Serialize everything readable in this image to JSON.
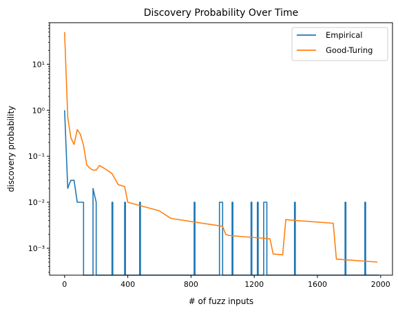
{
  "chart_data": {
    "type": "line",
    "title": "Discovery Probability Over Time",
    "xlabel": "# of fuzz inputs",
    "ylabel": "discovery probability",
    "xlim": [
      -95,
      2075
    ],
    "ylim": [
      0.00026,
      80
    ],
    "yscale": "log",
    "grid": false,
    "legend_position": "top-right",
    "xticks": [
      0,
      400,
      800,
      1200,
      1600,
      2000
    ],
    "xtick_labels": [
      "0",
      "400",
      "800",
      "1200",
      "1600",
      "2000"
    ],
    "yticks": [
      0.001,
      0.01,
      0.1,
      1,
      10
    ],
    "ytick_labels": [
      "10⁻³",
      "10⁻²",
      "10⁻¹",
      "10⁰",
      "10¹"
    ],
    "series": [
      {
        "name": "Empirical",
        "color": "#1f77b4",
        "x": [
          0,
          20,
          30,
          40,
          60,
          80,
          100,
          120,
          120,
          180,
          180,
          200,
          200,
          300,
          300,
          305,
          305,
          380,
          380,
          385,
          385,
          475,
          475,
          480,
          480,
          820,
          820,
          825,
          825,
          980,
          980,
          1000,
          1000,
          1060,
          1060,
          1065,
          1065,
          1180,
          1180,
          1185,
          1185,
          1220,
          1220,
          1225,
          1225,
          1260,
          1260,
          1280,
          1280,
          1455,
          1455,
          1460,
          1460,
          1775,
          1775,
          1780,
          1780,
          1900,
          1900,
          1905,
          1905,
          1990
        ],
        "y": [
          1.0,
          0.02,
          0.025,
          0.03,
          0.03,
          0.01,
          0.01,
          0.01,
          0.00026,
          0.00026,
          0.02,
          0.01,
          0.00026,
          0.00026,
          0.01,
          0.01,
          0.00026,
          0.00026,
          0.01,
          0.01,
          0.00026,
          0.00026,
          0.01,
          0.01,
          0.00026,
          0.00026,
          0.01,
          0.01,
          0.00026,
          0.00026,
          0.01,
          0.01,
          0.00026,
          0.00026,
          0.01,
          0.01,
          0.00026,
          0.00026,
          0.01,
          0.01,
          0.00026,
          0.00026,
          0.01,
          0.01,
          0.00026,
          0.00026,
          0.01,
          0.01,
          0.00026,
          0.00026,
          0.01,
          0.01,
          0.00026,
          0.00026,
          0.01,
          0.01,
          0.00026,
          0.00026,
          0.01,
          0.01,
          0.00026,
          0.00026
        ]
      },
      {
        "name": "Good-Turing",
        "color": "#ff7f0e",
        "x": [
          0,
          20,
          40,
          60,
          80,
          100,
          120,
          140,
          160,
          180,
          200,
          220,
          250,
          280,
          300,
          340,
          380,
          400,
          600,
          670,
          700,
          1000,
          1020,
          1040,
          1300,
          1320,
          1380,
          1400,
          1430,
          1700,
          1720,
          1750,
          1980
        ],
        "y": [
          50,
          0.7,
          0.25,
          0.18,
          0.38,
          0.3,
          0.17,
          0.065,
          0.055,
          0.05,
          0.05,
          0.063,
          0.055,
          0.047,
          0.042,
          0.024,
          0.022,
          0.01,
          0.0065,
          0.0045,
          0.0043,
          0.003,
          0.002,
          0.0019,
          0.0016,
          0.00075,
          0.00072,
          0.0042,
          0.0041,
          0.0035,
          0.00058,
          0.00057,
          0.0005
        ]
      }
    ]
  }
}
